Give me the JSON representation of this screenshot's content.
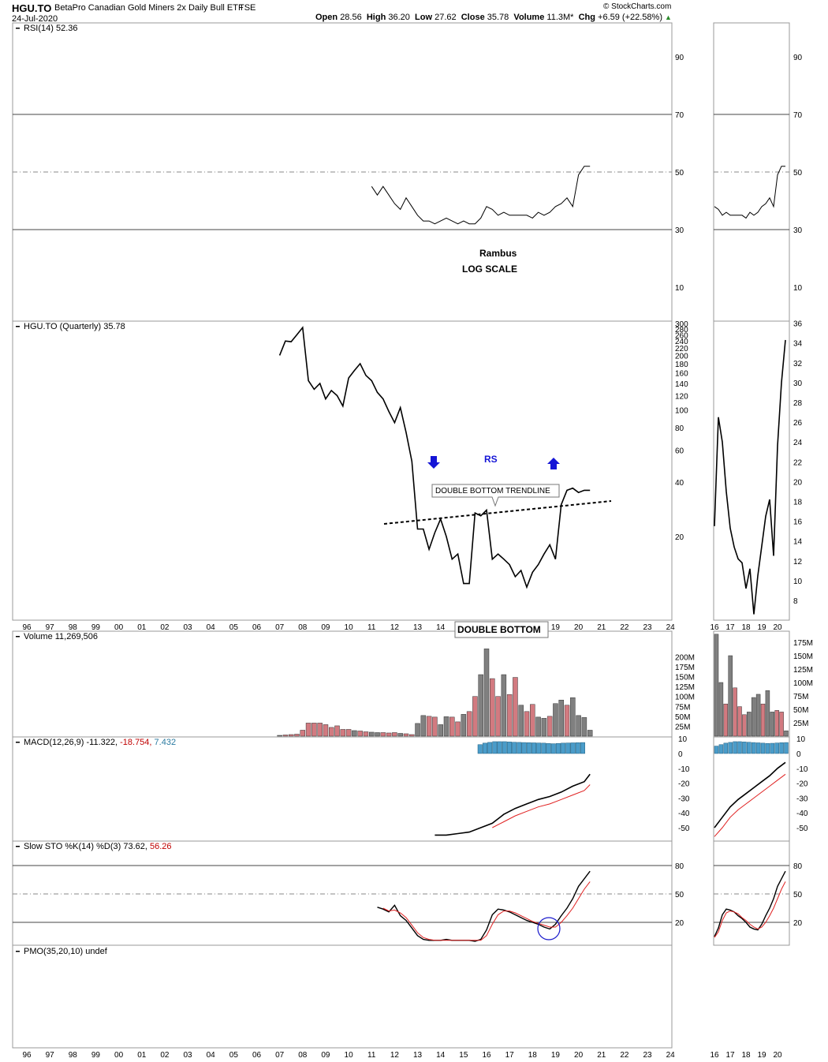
{
  "header": {
    "symbol": "HGU.TO",
    "name": "BetaPro Canadian Gold Miners 2x Daily Bull ETF",
    "exchange": "TSE",
    "date": "24-Jul-2020",
    "credit": "© StockCharts.com",
    "ohlc": {
      "open_label": "Open",
      "open": "28.56",
      "high_label": "High",
      "high": "36.20",
      "low_label": "Low",
      "low": "27.62",
      "close_label": "Close",
      "close": "35.78",
      "volume_label": "Volume",
      "volume": "11.3M*",
      "chg_label": "Chg",
      "chg": "+6.59 (+22.58%)"
    }
  },
  "colors": {
    "up_volume": "#808080",
    "down_volume": "#d27a80",
    "macd_hist": "#4a9cc9",
    "signal": "#e02020",
    "arrow": "#1515d6",
    "circle": "#1a1acc"
  },
  "chart_data": [
    {
      "type": "line",
      "panel": "rsi",
      "label": "RSI(14) 52.36",
      "x": [
        "11.0",
        "11.25",
        "11.5",
        "11.75",
        "12.0",
        "12.25",
        "12.5",
        "12.75",
        "13.0",
        "13.25",
        "13.5",
        "13.75",
        "14.0",
        "14.25",
        "14.5",
        "14.75",
        "15.0",
        "15.25",
        "15.5",
        "15.75",
        "16.0",
        "16.25",
        "16.5",
        "16.75",
        "17.0",
        "17.25",
        "17.5",
        "17.75",
        "18.0",
        "18.25",
        "18.5",
        "18.75",
        "19.0",
        "19.25",
        "19.5",
        "19.75",
        "20.0",
        "20.25",
        "20.5"
      ],
      "y": [
        45,
        42,
        45,
        42,
        39,
        37,
        41,
        38,
        35,
        33,
        33,
        32,
        33,
        34,
        33,
        32,
        33,
        32,
        32,
        34,
        38,
        37,
        35,
        36,
        35,
        35,
        35,
        35,
        34,
        36,
        35,
        36,
        38,
        39,
        41,
        38,
        49,
        52,
        52
      ],
      "ylim": [
        0,
        100
      ],
      "levels": [
        30,
        50,
        70
      ],
      "ticks": [
        10,
        30,
        50,
        70,
        90
      ]
    },
    {
      "type": "line",
      "panel": "price",
      "label": "HGU.TO (Quarterly) 35.78",
      "scale": "log",
      "x": [
        "07.0",
        "07.25",
        "07.5",
        "07.75",
        "08.0",
        "08.25",
        "08.5",
        "08.75",
        "09.0",
        "09.25",
        "09.5",
        "09.75",
        "10.0",
        "10.25",
        "10.5",
        "10.75",
        "11.0",
        "11.25",
        "11.5",
        "11.75",
        "12.0",
        "12.25",
        "12.5",
        "12.75",
        "13.0",
        "13.25",
        "13.5",
        "13.75",
        "14.0",
        "14.25",
        "14.5",
        "14.75",
        "15.0",
        "15.25",
        "15.5",
        "15.75",
        "16.0",
        "16.25",
        "16.5",
        "16.75",
        "17.0",
        "17.25",
        "17.5",
        "17.75",
        "18.0",
        "18.25",
        "18.5",
        "18.75",
        "19.0",
        "19.25",
        "19.5",
        "19.75",
        "20.0",
        "20.25",
        "20.5"
      ],
      "y": [
        200,
        240,
        238,
        260,
        285,
        145,
        130,
        140,
        115,
        128,
        120,
        105,
        150,
        165,
        180,
        155,
        145,
        125,
        115,
        98,
        85,
        103,
        75,
        52,
        22,
        22,
        17,
        21,
        25,
        20,
        15,
        16,
        11,
        11,
        27,
        26,
        28,
        15,
        16,
        15,
        14,
        12,
        13,
        10.5,
        12.7,
        14,
        16,
        18,
        15,
        30,
        36,
        37,
        35,
        36,
        36
      ],
      "ticks": [
        20,
        40,
        60,
        80,
        100,
        120,
        140,
        160,
        180,
        200,
        220,
        240,
        260,
        280,
        300
      ]
    },
    {
      "type": "bar",
      "panel": "volume",
      "label": "Volume 11,269,506",
      "x": [
        "07.0",
        "07.25",
        "07.5",
        "07.75",
        "08.0",
        "08.25",
        "08.5",
        "08.75",
        "09.0",
        "09.25",
        "09.5",
        "09.75",
        "10.0",
        "10.25",
        "10.5",
        "10.75",
        "11.0",
        "11.25",
        "11.5",
        "11.75",
        "12.0",
        "12.25",
        "12.5",
        "12.75",
        "13.0",
        "13.25",
        "13.5",
        "13.75",
        "14.0",
        "14.25",
        "14.5",
        "14.75",
        "15.0",
        "15.25",
        "15.5",
        "15.75",
        "16.0",
        "16.25",
        "16.5",
        "16.75",
        "17.0",
        "17.25",
        "17.5",
        "17.75",
        "18.0",
        "18.25",
        "18.5",
        "18.75",
        "19.0",
        "19.25",
        "19.5",
        "19.75",
        "20.0",
        "20.25",
        "20.5"
      ],
      "values": [
        2,
        3,
        4,
        5,
        15,
        33,
        33,
        33,
        29,
        22,
        26,
        17,
        17,
        14,
        13,
        11,
        10,
        9,
        9,
        8,
        9,
        7,
        6,
        4,
        32,
        52,
        50,
        48,
        29,
        49,
        48,
        36,
        55,
        62,
        100,
        155,
        220,
        145,
        100,
        155,
        105,
        148,
        78,
        62,
        80,
        48,
        45,
        50,
        82,
        91,
        78,
        97,
        52,
        47,
        15
      ],
      "colors_up": [
        1,
        0,
        0,
        0,
        0,
        0,
        0,
        0,
        0,
        0,
        0,
        0,
        0,
        1,
        0,
        0,
        1,
        1,
        0,
        0,
        0,
        1,
        0,
        0,
        1,
        1,
        0,
        0,
        1,
        1,
        0,
        0,
        1,
        0,
        0,
        1,
        1,
        0,
        0,
        1,
        0,
        0,
        1,
        0,
        0,
        1,
        1,
        0,
        1,
        1,
        0,
        1,
        1,
        1,
        1
      ],
      "ticks": [
        "25M",
        "50M",
        "75M",
        "100M",
        "125M",
        "150M",
        "175M",
        "200M"
      ]
    },
    {
      "type": "line",
      "panel": "macd",
      "label": "MACD(12,26,9) -11.322, -18.754, 7.432",
      "ticks": [
        10,
        0,
        -10,
        -20,
        -30,
        -40,
        -50
      ]
    },
    {
      "type": "line",
      "panel": "sto",
      "label": "Slow STO %K(14) %D(3) 73.62, 56.26",
      "ticks": [
        20,
        50,
        80
      ]
    },
    {
      "type": "line",
      "panel": "pmo",
      "label": "PMO(35,20,10) undef"
    }
  ],
  "axis": {
    "years": [
      "96",
      "97",
      "98",
      "99",
      "00",
      "01",
      "02",
      "03",
      "04",
      "05",
      "06",
      "07",
      "08",
      "09",
      "10",
      "11",
      "12",
      "13",
      "14",
      "15",
      "16",
      "17",
      "18",
      "19",
      "20",
      "21",
      "22",
      "23",
      "24"
    ],
    "side_years": [
      "16",
      "17",
      "18",
      "19",
      "20"
    ],
    "side_price_ticks": [
      "8",
      "10",
      "12",
      "14",
      "16",
      "18",
      "20",
      "22",
      "24",
      "26",
      "28",
      "30",
      "32",
      "34",
      "36"
    ],
    "side_volume_ticks": [
      "25M",
      "50M",
      "75M",
      "100M",
      "125M",
      "150M",
      "175M"
    ],
    "side_macd_ticks": [
      "10",
      "0",
      "-10",
      "-20",
      "-30",
      "-40",
      "-50"
    ]
  },
  "annotations": {
    "rambus": "Rambus",
    "log_scale": "LOG SCALE",
    "rs": "RS",
    "trendline": "DOUBLE BOTTOM TRENDLINE",
    "double_bottom": "DOUBLE BOTTOM"
  }
}
